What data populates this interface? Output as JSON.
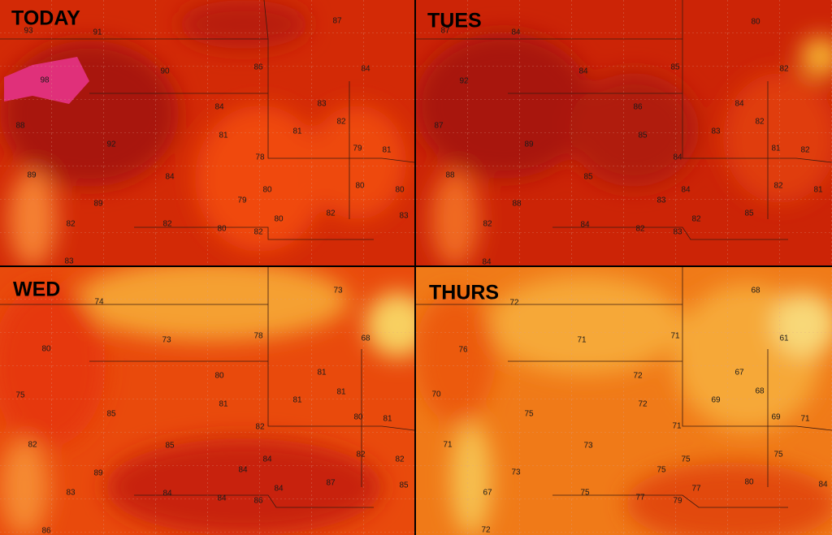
{
  "panels": [
    {
      "title": "TODAY",
      "labels": [
        "93",
        "91",
        "87",
        "98",
        "90",
        "86",
        "84",
        "84",
        "83",
        "82",
        "88",
        "92",
        "81",
        "81",
        "79",
        "81",
        "78",
        "89",
        "84",
        "80",
        "80",
        "89",
        "79",
        "80",
        "82",
        "83",
        "82",
        "82",
        "80",
        "80",
        "82",
        "83"
      ]
    },
    {
      "title": "TUES",
      "labels": [
        "87",
        "84",
        "80",
        "85",
        "82",
        "92",
        "84",
        "86",
        "84",
        "82",
        "87",
        "89",
        "85",
        "83",
        "81",
        "82",
        "84",
        "88",
        "85",
        "82",
        "81",
        "88",
        "83",
        "84",
        "82",
        "85",
        "82",
        "84",
        "82",
        "83",
        "84"
      ]
    },
    {
      "title": "WED",
      "labels": [
        "74",
        "73",
        "73",
        "78",
        "68",
        "80",
        "80",
        "81",
        "81",
        "75",
        "81",
        "81",
        "80",
        "81",
        "85",
        "82",
        "82",
        "85",
        "82",
        "82",
        "89",
        "84",
        "84",
        "87",
        "85",
        "83",
        "84",
        "84",
        "84",
        "86",
        "86"
      ]
    },
    {
      "title": "THURS",
      "labels": [
        "72",
        "68",
        "71",
        "71",
        "61",
        "76",
        "72",
        "67",
        "68",
        "70",
        "72",
        "69",
        "69",
        "71",
        "75",
        "71",
        "71",
        "73",
        "75",
        "73",
        "75",
        "75",
        "77",
        "80",
        "84",
        "67",
        "75",
        "77",
        "79",
        "72"
      ]
    }
  ]
}
